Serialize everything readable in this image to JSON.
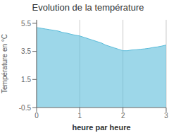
{
  "chart_data": {
    "type": "area",
    "title": "Evolution de la température",
    "xlabel": "heure par heure",
    "ylabel": "Température en °C",
    "x": [
      0.0,
      0.1,
      0.2,
      0.3,
      0.4,
      0.5,
      0.6,
      0.7,
      0.8,
      0.9,
      1.0,
      1.1,
      1.2,
      1.3,
      1.4,
      1.5,
      1.6,
      1.7,
      1.8,
      1.9,
      2.0,
      2.1,
      2.2,
      2.3,
      2.4,
      2.5,
      2.6,
      2.7,
      2.8,
      2.9,
      3.0
    ],
    "values": [
      5.2,
      5.15,
      5.1,
      5.05,
      5.0,
      4.95,
      4.85,
      4.8,
      4.72,
      4.65,
      4.6,
      4.5,
      4.4,
      4.3,
      4.2,
      4.1,
      3.95,
      3.85,
      3.75,
      3.65,
      3.55,
      3.55,
      3.6,
      3.62,
      3.65,
      3.68,
      3.72,
      3.78,
      3.82,
      3.88,
      3.95
    ],
    "color": "#5bbcda",
    "xlim": [
      0,
      3
    ],
    "ylim": [
      -0.5,
      5.75
    ],
    "xticks": [
      0,
      1,
      2,
      3
    ],
    "yticks": [
      -0.5,
      1.5,
      3.5,
      5.5
    ],
    "grid": "x"
  }
}
